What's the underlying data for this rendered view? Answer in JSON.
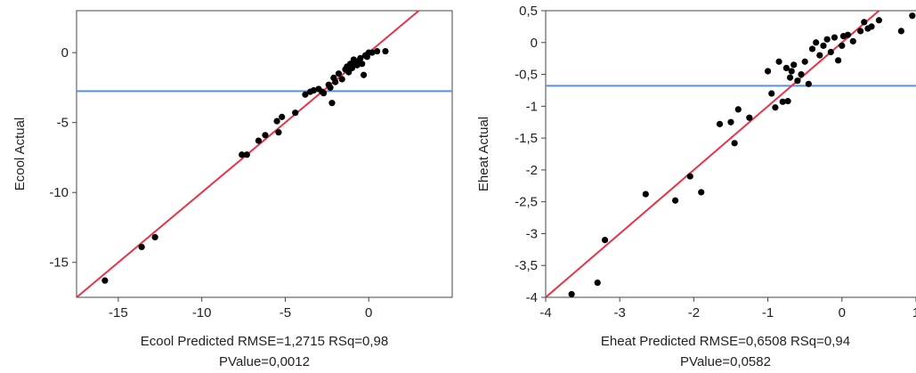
{
  "chart_data": [
    {
      "type": "scatter",
      "xlabel": "Ecool Predicted RMSE=1,2715 RSq=0,98",
      "subtitle": "PValue=0,0012",
      "ylabel": "Ecool Actual",
      "xlim": [
        -17.5,
        5
      ],
      "ylim": [
        -17.5,
        3
      ],
      "xticks": [
        -15,
        -10,
        -5,
        0
      ],
      "xtick_labels": [
        "-15",
        "-10",
        "-5",
        "0"
      ],
      "yticks": [
        0,
        -5,
        -10,
        -15
      ],
      "ytick_labels": [
        "0",
        "-5",
        "-10",
        "-15"
      ],
      "grid": false,
      "mean_line_y": -2.75,
      "fit_line": [
        [
          -17.5,
          -17.5
        ],
        [
          3,
          3
        ]
      ],
      "colors": {
        "points": "#000000",
        "fit_line": "#e8334a",
        "mean_line": "#5b8ee6"
      },
      "points": [
        [
          -15.8,
          -16.3
        ],
        [
          -13.6,
          -13.9
        ],
        [
          -12.8,
          -13.2
        ],
        [
          -7.6,
          -7.3
        ],
        [
          -7.3,
          -7.3
        ],
        [
          -6.6,
          -6.3
        ],
        [
          -6.2,
          -5.9
        ],
        [
          -5.5,
          -4.9
        ],
        [
          -5.4,
          -5.7
        ],
        [
          -5.2,
          -4.6
        ],
        [
          -4.4,
          -4.3
        ],
        [
          -3.8,
          -3.0
        ],
        [
          -3.5,
          -2.8
        ],
        [
          -3.3,
          -2.7
        ],
        [
          -3.0,
          -2.6
        ],
        [
          -2.8,
          -2.8
        ],
        [
          -2.7,
          -2.9
        ],
        [
          -2.4,
          -2.3
        ],
        [
          -2.3,
          -2.5
        ],
        [
          -2.2,
          -3.6
        ],
        [
          -2.1,
          -1.8
        ],
        [
          -2.0,
          -2.1
        ],
        [
          -1.8,
          -1.5
        ],
        [
          -1.6,
          -1.9
        ],
        [
          -1.4,
          -1.2
        ],
        [
          -1.3,
          -1.0
        ],
        [
          -1.2,
          -1.4
        ],
        [
          -1.1,
          -0.8
        ],
        [
          -1.0,
          -1.1
        ],
        [
          -0.9,
          -0.5
        ],
        [
          -0.8,
          -0.7
        ],
        [
          -0.7,
          -0.9
        ],
        [
          -0.6,
          -0.6
        ],
        [
          -0.5,
          -0.4
        ],
        [
          -0.4,
          -0.8
        ],
        [
          -0.3,
          -1.6
        ],
        [
          -0.2,
          -0.2
        ],
        [
          -0.1,
          -0.3
        ],
        [
          0.0,
          0.0
        ],
        [
          0.2,
          0.0
        ],
        [
          0.5,
          0.1
        ],
        [
          1.0,
          0.1
        ]
      ]
    },
    {
      "type": "scatter",
      "xlabel": "Eheat Predicted RMSE=0,6508 RSq=0,94",
      "subtitle": "PValue=0,0582",
      "ylabel": "Eheat Actual",
      "xlim": [
        -4,
        1
      ],
      "ylim": [
        -4,
        0.5
      ],
      "xticks": [
        -4,
        -3,
        -2,
        -1,
        0,
        1
      ],
      "xtick_labels": [
        "-4",
        "-3",
        "-2",
        "-1",
        "0",
        "1"
      ],
      "yticks": [
        0.5,
        0,
        -0.5,
        -1,
        -1.5,
        -2,
        -2.5,
        -3,
        -3.5,
        -4
      ],
      "ytick_labels": [
        "0,5",
        "0",
        "-0,5",
        "-1",
        "-1,5",
        "-2",
        "-2,5",
        "-3",
        "-3,5",
        "-4"
      ],
      "grid": false,
      "mean_line_y": -0.68,
      "fit_line": [
        [
          -4,
          -4
        ],
        [
          0.5,
          0.5
        ]
      ],
      "colors": {
        "points": "#000000",
        "fit_line": "#e8334a",
        "mean_line": "#5b8ee6"
      },
      "points": [
        [
          -3.65,
          -3.95
        ],
        [
          -3.3,
          -3.77
        ],
        [
          -3.2,
          -3.1
        ],
        [
          -2.65,
          -2.38
        ],
        [
          -2.25,
          -2.48
        ],
        [
          -2.05,
          -2.1
        ],
        [
          -1.9,
          -2.35
        ],
        [
          -1.65,
          -1.28
        ],
        [
          -1.5,
          -1.25
        ],
        [
          -1.45,
          -1.58
        ],
        [
          -1.4,
          -1.05
        ],
        [
          -1.25,
          -1.18
        ],
        [
          -1.0,
          -0.45
        ],
        [
          -0.95,
          -0.8
        ],
        [
          -0.9,
          -1.02
        ],
        [
          -0.85,
          -0.3
        ],
        [
          -0.8,
          -0.93
        ],
        [
          -0.75,
          -0.4
        ],
        [
          -0.73,
          -0.92
        ],
        [
          -0.7,
          -0.55
        ],
        [
          -0.68,
          -0.45
        ],
        [
          -0.65,
          -0.35
        ],
        [
          -0.6,
          -0.6
        ],
        [
          -0.55,
          -0.5
        ],
        [
          -0.5,
          -0.3
        ],
        [
          -0.45,
          -0.65
        ],
        [
          -0.4,
          -0.1
        ],
        [
          -0.35,
          0.0
        ],
        [
          -0.3,
          -0.2
        ],
        [
          -0.25,
          -0.05
        ],
        [
          -0.2,
          0.05
        ],
        [
          -0.15,
          -0.15
        ],
        [
          -0.1,
          0.08
        ],
        [
          -0.05,
          -0.28
        ],
        [
          0.0,
          -0.05
        ],
        [
          0.02,
          0.1
        ],
        [
          0.08,
          0.12
        ],
        [
          0.15,
          0.02
        ],
        [
          0.25,
          0.18
        ],
        [
          0.3,
          0.32
        ],
        [
          0.35,
          0.22
        ],
        [
          0.4,
          0.25
        ],
        [
          0.5,
          0.35
        ],
        [
          0.8,
          0.18
        ],
        [
          0.95,
          0.42
        ]
      ]
    }
  ]
}
